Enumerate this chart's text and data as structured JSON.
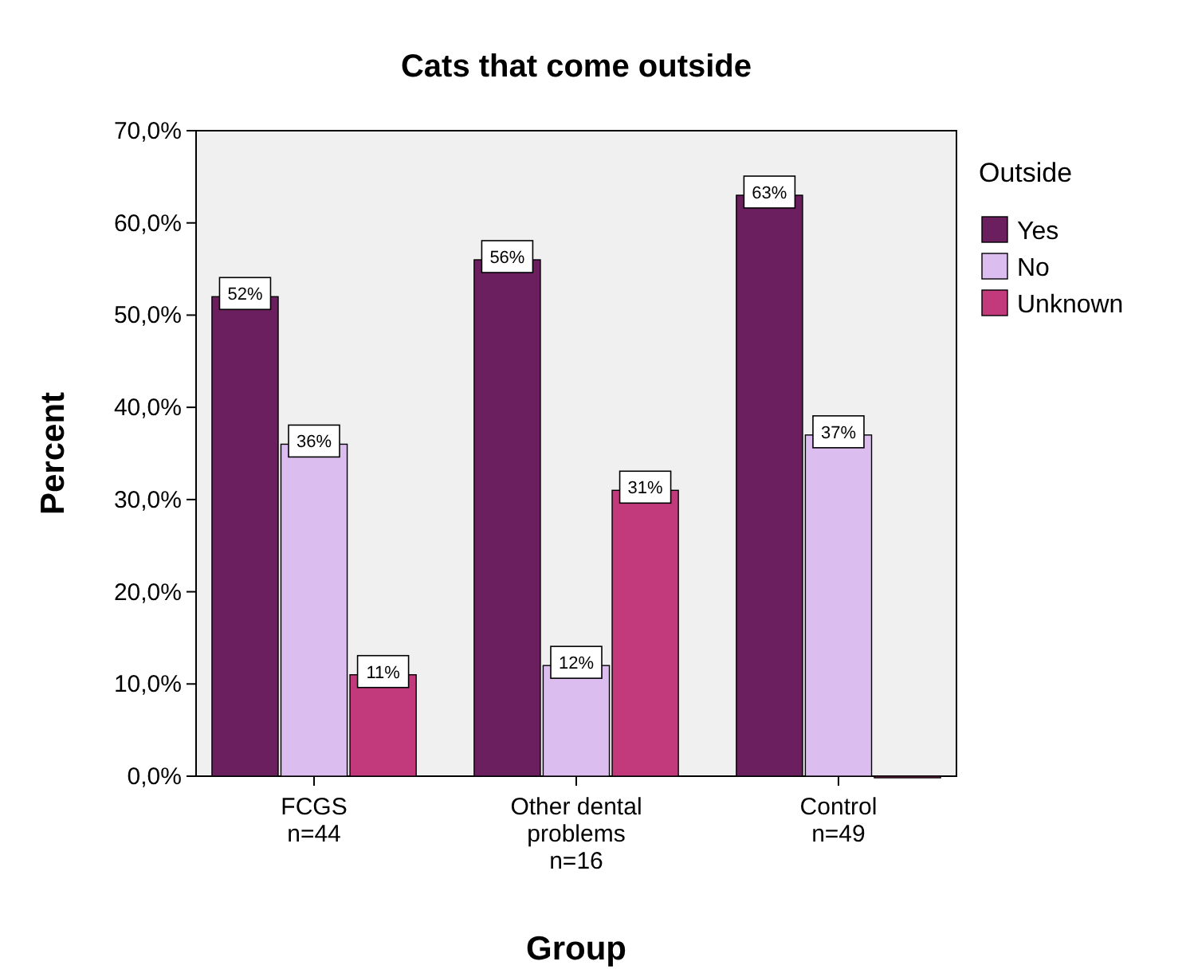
{
  "chart_data": {
    "type": "bar",
    "title": "Cats that come outside",
    "xlabel": "Group",
    "ylabel": "Percent",
    "legend_title": "Outside",
    "legend": "right",
    "categories": [
      "FCGS\nn=44",
      "Other dental\nproblems\nn=16",
      "Control\nn=49"
    ],
    "series": [
      {
        "name": "Yes",
        "color": "#6b1f5e",
        "values": [
          52,
          56,
          63
        ],
        "value_labels": [
          "52%",
          "56%",
          "63%"
        ]
      },
      {
        "name": "No",
        "color": "#dcbdf0",
        "values": [
          36,
          12,
          37
        ],
        "value_labels": [
          "36%",
          "12%",
          "37%"
        ]
      },
      {
        "name": "Unknown",
        "color": "#c33a7c",
        "values": [
          11,
          31,
          0
        ],
        "value_labels": [
          "11%",
          "31%",
          null
        ]
      }
    ],
    "ylim": [
      0,
      70
    ],
    "yticks": [
      {
        "value": 0,
        "label": "0,0%"
      },
      {
        "value": 10,
        "label": "10,0%"
      },
      {
        "value": 20,
        "label": "20,0%"
      },
      {
        "value": 30,
        "label": "30,0%"
      },
      {
        "value": 40,
        "label": "40,0%"
      },
      {
        "value": 50,
        "label": "50,0%"
      },
      {
        "value": 60,
        "label": "60,0%"
      },
      {
        "value": 70,
        "label": "70,0%"
      }
    ],
    "grid": false
  }
}
